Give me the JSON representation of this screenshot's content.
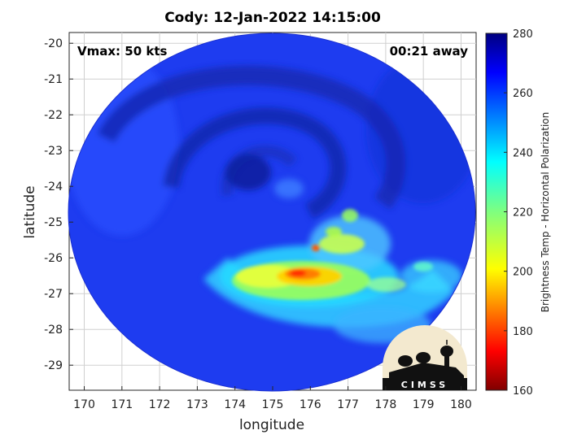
{
  "chart_data": {
    "type": "heatmap",
    "title": "Cody: 12-Jan-2022 14:15:00",
    "xlabel": "longitude",
    "ylabel": "latitude",
    "xlim": [
      169.6,
      180.4
    ],
    "ylim": [
      -29.7,
      -19.7
    ],
    "x_ticks": [
      "170",
      "171",
      "172",
      "173",
      "174",
      "175",
      "176",
      "177",
      "178",
      "179",
      "180"
    ],
    "y_ticks": [
      "-20",
      "-21",
      "-22",
      "-23",
      "-24",
      "-25",
      "-26",
      "-27",
      "-28",
      "-29"
    ],
    "grid": true,
    "annotations": {
      "vmax": "Vmax: 50 kts",
      "time_away": "00:21 away"
    },
    "colorbar": {
      "label": "Brightness Temp - Horizontal Polarization",
      "min": 160,
      "max": 280,
      "ticks": [
        "280",
        "260",
        "240",
        "220",
        "200",
        "180",
        "160"
      ],
      "colormap": "jet"
    },
    "storm_center": {
      "lon": 174.6,
      "lat": -23.7
    },
    "field_summary": {
      "background_temp": 262,
      "eye_temp": 268,
      "min_temp_core": 190
    }
  },
  "logo": {
    "text": "CIMSS"
  },
  "colors": {
    "background": "#ffffff",
    "grid": "#d0d0d0",
    "axis": "#262626"
  }
}
